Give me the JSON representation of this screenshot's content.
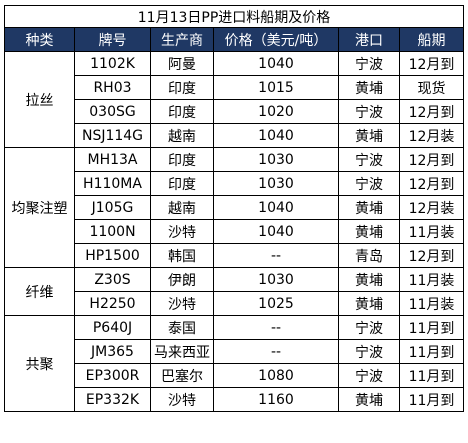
{
  "title": "11月13日PP进口料船期及价格",
  "headers": [
    "种类",
    "牌号",
    "生产商",
    "价格（美元/吨）",
    "港口",
    "船期"
  ],
  "groups": [
    {
      "name": "拉丝",
      "rows": [
        [
          "1102K",
          "阿曼",
          "1040",
          "宁波",
          "12月到"
        ],
        [
          "RH03",
          "印度",
          "1015",
          "黄埔",
          "现货"
        ],
        [
          "030SG",
          "印度",
          "1020",
          "宁波",
          "12月到"
        ],
        [
          "NSJ114G",
          "越南",
          "1040",
          "黄埔",
          "12月装"
        ]
      ]
    },
    {
      "name": "均聚注塑",
      "rows": [
        [
          "MH13A",
          "印度",
          "1030",
          "宁波",
          "12月到"
        ],
        [
          "H110MA",
          "印度",
          "1030",
          "宁波",
          "12月到"
        ],
        [
          "J105G",
          "越南",
          "1040",
          "黄埔",
          "12月装"
        ],
        [
          "1100N",
          "沙特",
          "1040",
          "黄埔",
          "11月装"
        ],
        [
          "HP1500",
          "韩国",
          "--",
          "青岛",
          "12月到"
        ]
      ]
    },
    {
      "name": "纤维",
      "rows": [
        [
          "Z30S",
          "伊朗",
          "1030",
          "黄埔",
          "11月装"
        ],
        [
          "H2250",
          "沙特",
          "1025",
          "黄埔",
          "11月装"
        ]
      ]
    },
    {
      "name": "共聚",
      "rows": [
        [
          "P640J",
          "泰国",
          "--",
          "宁波",
          "11月到"
        ],
        [
          "JM365",
          "马来西亚",
          "--",
          "宁波",
          "11月到"
        ],
        [
          "EP300R",
          "巴塞尔",
          "1080",
          "宁波",
          "11月到"
        ],
        [
          "EP332K",
          "沙特",
          "1160",
          "黄埔",
          "11月到"
        ]
      ]
    }
  ],
  "colors": {
    "header_bg": "#1f3864",
    "header_text": "#ffffff"
  }
}
